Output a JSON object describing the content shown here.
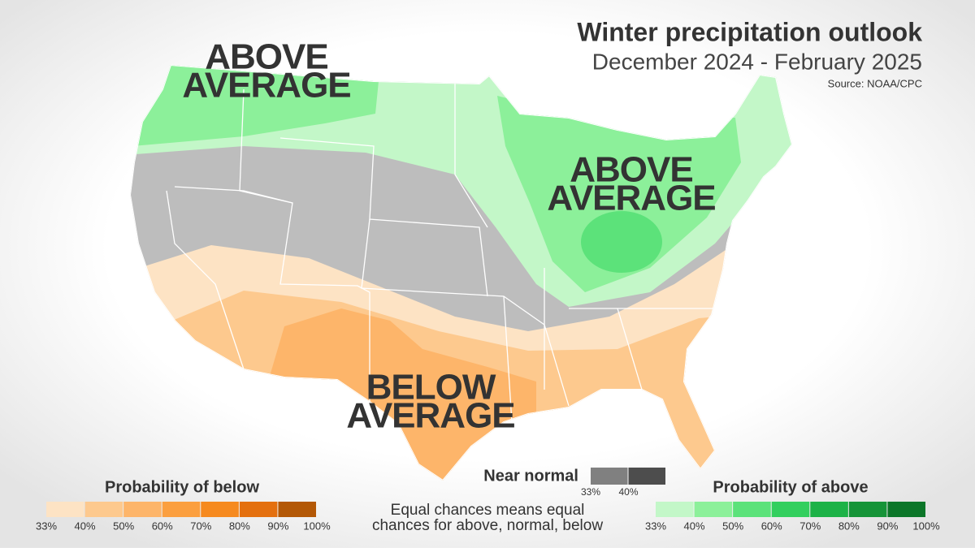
{
  "header": {
    "title": "Winter precipitation outlook",
    "subtitle": "December 2024 - February 2025",
    "source": "Source: NOAA/CPC"
  },
  "map_labels": [
    {
      "lines": [
        "ABOVE",
        "AVERAGE"
      ]
    },
    {
      "lines": [
        "ABOVE",
        "AVERAGE"
      ]
    },
    {
      "lines": [
        "BELOW",
        "AVERAGE"
      ]
    }
  ],
  "legend": {
    "below": {
      "title": "Probability of below",
      "ticks": [
        "33%",
        "40%",
        "50%",
        "60%",
        "70%",
        "80%",
        "90%",
        "100%"
      ],
      "colors": [
        "#fde3c4",
        "#fdc98e",
        "#fdb56a",
        "#fb9f3f",
        "#f68a1f",
        "#e4700f",
        "#b35806"
      ]
    },
    "near_normal": {
      "title": "Near normal",
      "ticks": [
        "33%",
        "40%"
      ],
      "colors": [
        "#808080",
        "#4d4d4d"
      ]
    },
    "above": {
      "title": "Probability of above",
      "ticks": [
        "33%",
        "40%",
        "50%",
        "60%",
        "70%",
        "80%",
        "90%",
        "100%"
      ],
      "colors": [
        "#c3f7c8",
        "#8cf09a",
        "#5ce27a",
        "#33cf5e",
        "#1db247",
        "#169438",
        "#0c7629"
      ]
    },
    "note": [
      "Equal chances means equal",
      "chances for above, normal, below"
    ]
  }
}
